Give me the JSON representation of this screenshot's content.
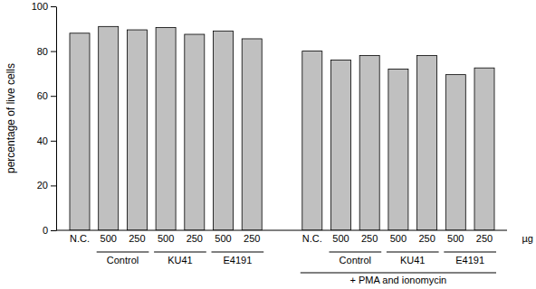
{
  "chart_data": {
    "type": "bar",
    "ylabel": "percentage of live cells",
    "xlabel": "µg",
    "categories": [
      "N.C.",
      "500",
      "250",
      "500",
      "250",
      "500",
      "250",
      "N.C.",
      "500",
      "250",
      "500",
      "250",
      "500",
      "250"
    ],
    "values": [
      88,
      91,
      89.5,
      90.5,
      87.5,
      89,
      85.5,
      80,
      76,
      78,
      72,
      78,
      69.5,
      72.5
    ],
    "color": "#c0c0c0",
    "ylim": [
      0,
      100
    ],
    "yticks": [
      0,
      20,
      40,
      60,
      80,
      100
    ],
    "groups": [
      {
        "label": "Control",
        "span": [
          1,
          2
        ]
      },
      {
        "label": "KU41",
        "span": [
          3,
          4
        ]
      },
      {
        "label": "E4191",
        "span": [
          5,
          6
        ]
      },
      {
        "label": "Control",
        "span": [
          8,
          9
        ]
      },
      {
        "label": "KU41",
        "span": [
          10,
          11
        ]
      },
      {
        "label": "E4191",
        "span": [
          12,
          13
        ]
      },
      {
        "label": "+ PMA and ionomycin",
        "span": [
          7,
          13
        ]
      }
    ]
  }
}
